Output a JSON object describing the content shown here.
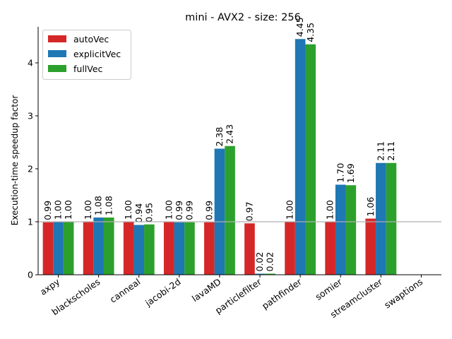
{
  "chart_data": {
    "type": "bar",
    "title": "mini - AVX2 - size: 256",
    "xlabel": "",
    "ylabel": "Execution-time speedup factor",
    "ylim": [
      0,
      4.68
    ],
    "yticks": [
      0,
      1,
      2,
      3,
      4
    ],
    "reference_line": 1,
    "legend_position": "top-left",
    "grid": false,
    "categories": [
      "axpy",
      "blackscholes",
      "canneal",
      "jacobi-2d",
      "lavaMD",
      "particlefilter",
      "pathfinder",
      "somier",
      "streamcluster",
      "swaptions"
    ],
    "series": [
      {
        "name": "autoVec",
        "color": "#d62728",
        "values": [
          0.99,
          1.0,
          1.0,
          1.0,
          0.99,
          0.97,
          1.0,
          1.0,
          1.06,
          null
        ],
        "labels": [
          "0.99",
          "1.00",
          "1.00",
          "1.00",
          "0.99",
          "0.97",
          "1.00",
          "1.00",
          "1.06",
          ""
        ]
      },
      {
        "name": "explicitVec",
        "color": "#1f77b4",
        "values": [
          1.0,
          1.08,
          0.94,
          0.99,
          2.38,
          0.02,
          4.45,
          1.7,
          2.11,
          null
        ],
        "labels": [
          "1.00",
          "1.08",
          "0.94",
          "0.99",
          "2.38",
          "0.02",
          "4.45",
          "1.70",
          "2.11",
          ""
        ]
      },
      {
        "name": "fullVec",
        "color": "#2ca02c",
        "values": [
          1.0,
          1.08,
          0.95,
          0.99,
          2.43,
          0.02,
          4.35,
          1.69,
          2.11,
          null
        ],
        "labels": [
          "1.00",
          "1.08",
          "0.95",
          "0.99",
          "2.43",
          "0.02",
          "4.35",
          "1.69",
          "2.11",
          ""
        ]
      }
    ]
  }
}
